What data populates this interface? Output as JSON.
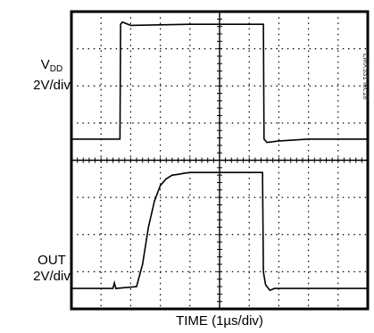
{
  "labels": {
    "ch1_prefix": "V",
    "ch1_sub": "DD",
    "ch1_scale": "2V/div",
    "ch2_name": "OUT",
    "ch2_scale": "2V/div",
    "time_axis": "TIME (1µs/div)",
    "figure_id": "LMX331 toc18"
  },
  "chart_data": {
    "type": "line",
    "title": "",
    "xlabel": "TIME (1µs/div)",
    "ylabel": "",
    "divisions": {
      "x": 10,
      "y": 8
    },
    "grid": true,
    "series": [
      {
        "name": "VDD",
        "scale": "2V/div",
        "y_unit": "div above bottom of upper half",
        "x": [
          0,
          1.64,
          1.66,
          1.72,
          2,
          4,
          6.2,
          6.48,
          6.5,
          6.6,
          7,
          8,
          10
        ],
        "y": [
          0.57,
          0.57,
          3.66,
          3.72,
          3.63,
          3.66,
          3.66,
          3.66,
          0.57,
          0.48,
          0.52,
          0.57,
          0.57
        ]
      },
      {
        "name": "OUT",
        "scale": "2V/div",
        "y_unit": "div above bottom of lower half",
        "x": [
          0,
          1.4,
          1.45,
          1.5,
          2.2,
          2.4,
          2.6,
          2.8,
          3.0,
          3.2,
          3.4,
          3.6,
          3.8,
          4.0,
          6.0,
          6.45,
          6.48,
          6.55,
          6.7,
          6.85,
          7.5,
          10
        ],
        "y": [
          0.55,
          0.55,
          0.7,
          0.55,
          0.6,
          1.2,
          2.2,
          2.9,
          3.32,
          3.5,
          3.6,
          3.62,
          3.65,
          3.67,
          3.67,
          3.67,
          1.0,
          0.65,
          0.5,
          0.55,
          0.55,
          0.55
        ]
      }
    ]
  }
}
